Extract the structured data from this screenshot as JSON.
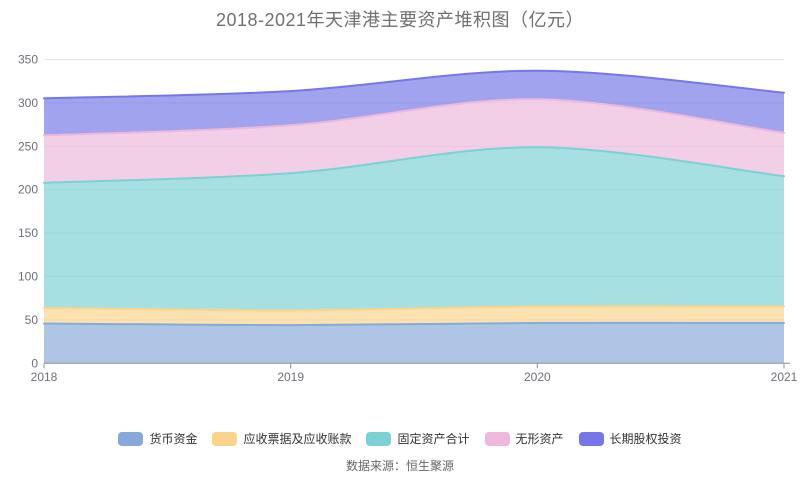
{
  "title": "2018-2021年天津港主要资产堆积图（亿元）",
  "source": "数据来源：恒生聚源",
  "axis": {
    "y_tick_labels": [
      "0",
      "50",
      "100",
      "150",
      "200",
      "250",
      "300",
      "350"
    ],
    "x_tick_labels": [
      "2018",
      "2019",
      "2020",
      "2021"
    ]
  },
  "chart_data": {
    "type": "area",
    "stacked": true,
    "smooth": true,
    "x": [
      2018,
      2019,
      2020,
      2021
    ],
    "series": [
      {
        "name": "货币资金",
        "color": "#87a9da",
        "values": [
          45.9,
          44.0,
          46.4,
          46.4
        ]
      },
      {
        "name": "应收票据及应收账款",
        "color": "#fbd48b",
        "values": [
          17.9,
          17.0,
          19.2,
          19.2
        ]
      },
      {
        "name": "固定资产合计",
        "color": "#7cd1d4",
        "values": [
          144.2,
          158.0,
          183.2,
          150.0
        ]
      },
      {
        "name": "无形资产",
        "color": "#edb8dc",
        "values": [
          54.5,
          55.2,
          55.3,
          49.9
        ]
      },
      {
        "name": "长期股权投资",
        "color": "#7577e8",
        "values": [
          42.8,
          39.4,
          33.0,
          46.2
        ]
      }
    ],
    "title": "2018-2021年天津港主要资产堆积图（亿元）",
    "xlabel": "",
    "ylabel": "",
    "ylim": [
      0,
      350
    ],
    "ytick_step": 50,
    "grid": true,
    "legend_position": "bottom",
    "area_opacity": 0.68,
    "colors": {
      "gridline": "#e3e3ef",
      "axis_line": "#909090",
      "axis_label": "#6e7079"
    }
  }
}
